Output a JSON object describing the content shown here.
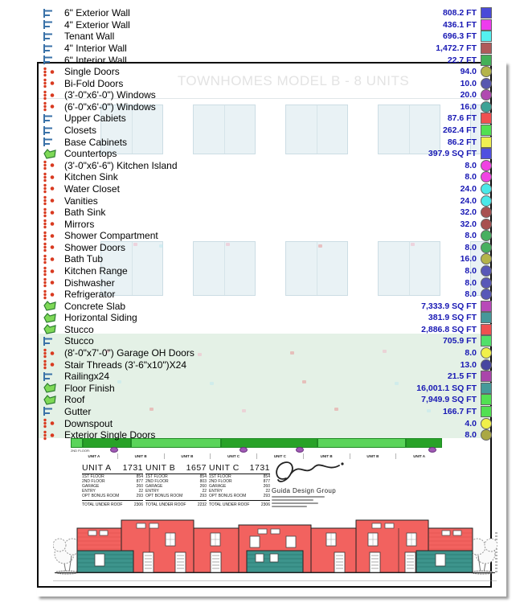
{
  "watermark": "TOWNHOMES MODEL B - 8 UNITS",
  "theme": {
    "value_text_color": "#1818b4",
    "strip_bright_green": "#5ad45a",
    "strip_dark_green": "#28a228",
    "elevation_red": "#f2625f",
    "elevation_teal": "#3d948c",
    "linear_icon_color": "#3a72a8",
    "count_icon_color": "#d93a20",
    "area_icon_color": "#7ed957"
  },
  "takeoff_items": [
    {
      "label": "6\" Exterior Wall",
      "qty": "808.2",
      "unit": "FT",
      "type": "linear",
      "icon": "linear-measure-icon",
      "color": "#4a4ad8"
    },
    {
      "label": "4\" Exterior Wall",
      "qty": "436.1",
      "unit": "FT",
      "type": "linear",
      "icon": "linear-measure-icon",
      "color": "#ee3cee"
    },
    {
      "label": "Tenant Wall",
      "qty": "696.3",
      "unit": "FT",
      "type": "linear",
      "icon": "linear-measure-icon",
      "color": "#54f0f0"
    },
    {
      "label": "4\" Interior Wall",
      "qty": "1,472.7",
      "unit": "FT",
      "type": "linear",
      "icon": "linear-measure-icon",
      "color": "#b05a5a"
    },
    {
      "label": "6\" Interior Wall",
      "qty": "22.7",
      "unit": "FT",
      "type": "linear",
      "icon": "linear-measure-icon",
      "color": "#44b058"
    },
    {
      "label": "Single Doors",
      "qty": "94.0",
      "unit": "",
      "type": "count",
      "icon": "count-icon",
      "color": "#b4b44a"
    },
    {
      "label": "Bi-Fold Doors",
      "qty": "10.0",
      "unit": "",
      "type": "count",
      "icon": "count-icon",
      "color": "#5858b0"
    },
    {
      "label": "(3'-0\"x6'-0\") Windows",
      "qty": "20.0",
      "unit": "",
      "type": "count",
      "icon": "count-icon",
      "color": "#b04ab0"
    },
    {
      "label": "(6'-0\"x6'-0\") Windows",
      "qty": "16.0",
      "unit": "",
      "type": "count",
      "icon": "count-icon",
      "color": "#3da396"
    },
    {
      "label": "Upper Cabiets",
      "qty": "87.6",
      "unit": "FT",
      "type": "linear",
      "icon": "linear-measure-icon",
      "color": "#f05050"
    },
    {
      "label": "Closets",
      "qty": "262.4",
      "unit": "FT",
      "type": "linear",
      "icon": "linear-measure-icon",
      "color": "#52e052"
    },
    {
      "label": "Base Cabinets",
      "qty": "86.2",
      "unit": "FT",
      "type": "linear",
      "icon": "linear-measure-icon",
      "color": "#f0f052"
    },
    {
      "label": "Countertops",
      "qty": "397.9",
      "unit": "SQ FT",
      "type": "area",
      "icon": "area-polygon-icon",
      "color": "#5050e0"
    },
    {
      "label": "(3'-0\"x6'-6\") Kitchen Island",
      "qty": "8.0",
      "unit": "",
      "type": "count",
      "icon": "count-icon",
      "color": "#f043e3"
    },
    {
      "label": "Kitchen Sink",
      "qty": "8.0",
      "unit": "",
      "type": "count",
      "icon": "count-icon",
      "color": "#f043e3"
    },
    {
      "label": "Water Closet",
      "qty": "24.0",
      "unit": "",
      "type": "count",
      "icon": "count-icon",
      "color": "#4ae8e8"
    },
    {
      "label": "Vanities",
      "qty": "24.0",
      "unit": "",
      "type": "count",
      "icon": "count-icon",
      "color": "#4ae8e8"
    },
    {
      "label": "Bath Sink",
      "qty": "32.0",
      "unit": "",
      "type": "count",
      "icon": "count-icon",
      "color": "#a85050"
    },
    {
      "label": "Mirrors",
      "qty": "32.0",
      "unit": "",
      "type": "count",
      "icon": "count-icon",
      "color": "#a85050"
    },
    {
      "label": "Shower Compartment",
      "qty": "8.0",
      "unit": "",
      "type": "count",
      "icon": "count-icon",
      "color": "#46b060"
    },
    {
      "label": "Shower Doors",
      "qty": "8.0",
      "unit": "",
      "type": "count",
      "icon": "count-icon",
      "color": "#46b060"
    },
    {
      "label": "Bath Tub",
      "qty": "16.0",
      "unit": "",
      "type": "count",
      "icon": "count-icon",
      "color": "#b4b44a"
    },
    {
      "label": "Kitchen Range",
      "qty": "8.0",
      "unit": "",
      "type": "count",
      "icon": "count-icon",
      "color": "#5858b8"
    },
    {
      "label": "Dishwasher",
      "qty": "8.0",
      "unit": "",
      "type": "count",
      "icon": "count-icon",
      "color": "#5858b8"
    },
    {
      "label": "Refrigerator",
      "qty": "8.0",
      "unit": "",
      "type": "count",
      "icon": "count-icon",
      "color": "#5858b8"
    },
    {
      "label": "Concrete Slab",
      "qty": "7,333.9",
      "unit": "SQ FT",
      "type": "area",
      "icon": "area-polygon-icon",
      "color": "#b84ab8"
    },
    {
      "label": "Horizontal Siding",
      "qty": "381.9",
      "unit": "SQ FT",
      "type": "area",
      "icon": "area-polygon-icon",
      "color": "#46989a"
    },
    {
      "label": "Stucco",
      "qty": "2,886.8",
      "unit": "SQ FT",
      "type": "area",
      "icon": "area-polygon-icon",
      "color": "#f05050"
    },
    {
      "label": "Stucco",
      "qty": "705.9",
      "unit": "FT",
      "type": "linear",
      "icon": "linear-measure-icon",
      "color": "#52e06a"
    },
    {
      "label": "(8'-0\"x7'-0\") Garage OH Doors",
      "qty": "8.0",
      "unit": "",
      "type": "count",
      "icon": "count-icon",
      "color": "#f0f04a"
    },
    {
      "label": "Stair Threads (3'-6\"x10\")X24",
      "qty": "13.0",
      "unit": "",
      "type": "count",
      "icon": "count-icon",
      "color": "#4646a0"
    },
    {
      "label": "Railingx24",
      "qty": "21.5",
      "unit": "FT",
      "type": "linear",
      "icon": "linear-measure-icon",
      "color": "#aa46aa"
    },
    {
      "label": "Floor Finish",
      "qty": "16,001.1",
      "unit": "SQ FT",
      "type": "area",
      "icon": "area-polygon-icon",
      "color": "#469a9a"
    },
    {
      "label": "Roof",
      "qty": "7,949.9",
      "unit": "SQ FT",
      "type": "area",
      "icon": "area-polygon-icon",
      "color": "#52e052"
    },
    {
      "label": "Gutter",
      "qty": "166.7",
      "unit": "FT",
      "type": "linear",
      "icon": "linear-measure-icon",
      "color": "#52e052"
    },
    {
      "label": "Downspout",
      "qty": "4.0",
      "unit": "",
      "type": "count",
      "icon": "count-icon",
      "color": "#f0f04a"
    },
    {
      "label": "Exterior Single Doors",
      "qty": "8.0",
      "unit": "",
      "type": "count",
      "icon": "count-icon",
      "color": "#aaa843"
    }
  ],
  "plan_strip": {
    "floor_label": "2ND FLOOR:",
    "unit_labels": [
      "UNIT A",
      "UNIT B",
      "UNIT B",
      "UNIT C",
      "UNIT C",
      "UNIT B",
      "UNIT B",
      "UNIT A"
    ]
  },
  "unit_tables": [
    {
      "name": "UNIT  A",
      "area": "1731",
      "rows": [
        [
          "1ST FLOOR",
          "854"
        ],
        [
          "2ND FLOOR",
          "877"
        ],
        [
          "GARAGE",
          "260"
        ],
        [
          "ENTRY",
          "22"
        ],
        [
          "OPT BONUS ROOM",
          "293"
        ]
      ],
      "total_label": "TOTAL UNDER ROOF",
      "total": "2306"
    },
    {
      "name": "UNIT  B",
      "area": "1657",
      "rows": [
        [
          "1ST FLOOR",
          "854"
        ],
        [
          "2ND FLOOR",
          "803"
        ],
        [
          "GARAGE",
          "260"
        ],
        [
          "ENTRY",
          "22"
        ],
        [
          "OPT BONUS ROOM",
          "293"
        ]
      ],
      "total_label": "TOTAL UNDER ROOF",
      "total": "2232"
    },
    {
      "name": "UNIT  C",
      "area": "1731",
      "rows": [
        [
          "1ST FLOOR",
          "854"
        ],
        [
          "2ND FLOOR",
          "877"
        ],
        [
          "GARAGE",
          "260"
        ],
        [
          "ENTRY",
          "22"
        ],
        [
          "OPT BONUS ROOM",
          "293"
        ]
      ],
      "total_label": "TOTAL UNDER ROOF",
      "total": "2306"
    }
  ],
  "logo": {
    "company": "Guida Design Group"
  }
}
